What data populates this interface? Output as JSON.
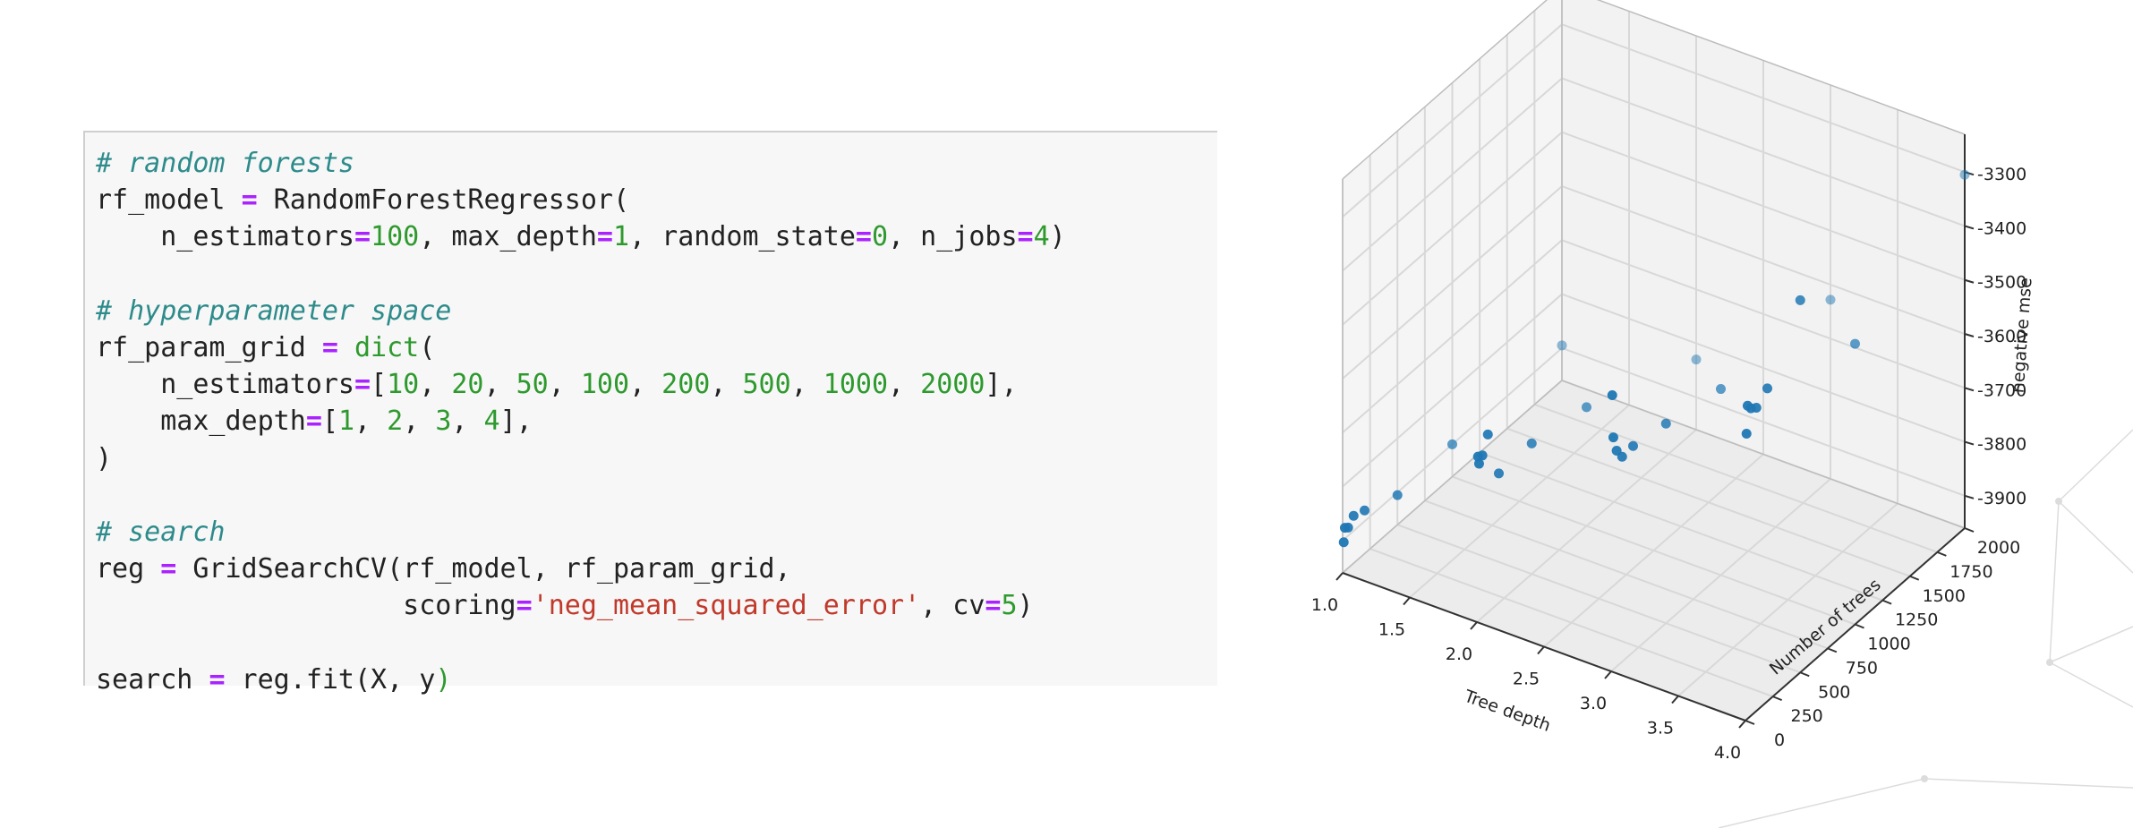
{
  "code_cell": {
    "lines": [
      [
        {
          "t": "# random forests",
          "c": "cm"
        }
      ],
      [
        {
          "t": "rf_model "
        },
        {
          "t": "=",
          "c": "op"
        },
        {
          "t": " RandomForestRegressor("
        }
      ],
      [
        {
          "t": "    n_estimators"
        },
        {
          "t": "=",
          "c": "op"
        },
        {
          "t": "100",
          "c": "nu"
        },
        {
          "t": ", max_depth"
        },
        {
          "t": "=",
          "c": "op"
        },
        {
          "t": "1",
          "c": "nu"
        },
        {
          "t": ", random_state"
        },
        {
          "t": "=",
          "c": "op"
        },
        {
          "t": "0",
          "c": "nu"
        },
        {
          "t": ", n_jobs"
        },
        {
          "t": "=",
          "c": "op"
        },
        {
          "t": "4",
          "c": "nu"
        },
        {
          "t": ")"
        }
      ],
      [
        {
          "t": ""
        }
      ],
      [
        {
          "t": "# hyperparameter space",
          "c": "cm"
        }
      ],
      [
        {
          "t": "rf_param_grid "
        },
        {
          "t": "=",
          "c": "op"
        },
        {
          "t": " "
        },
        {
          "t": "dict",
          "c": "nu"
        },
        {
          "t": "("
        }
      ],
      [
        {
          "t": "    n_estimators"
        },
        {
          "t": "=",
          "c": "op"
        },
        {
          "t": "["
        },
        {
          "t": "10",
          "c": "nu"
        },
        {
          "t": ", "
        },
        {
          "t": "20",
          "c": "nu"
        },
        {
          "t": ", "
        },
        {
          "t": "50",
          "c": "nu"
        },
        {
          "t": ", "
        },
        {
          "t": "100",
          "c": "nu"
        },
        {
          "t": ", "
        },
        {
          "t": "200",
          "c": "nu"
        },
        {
          "t": ", "
        },
        {
          "t": "500",
          "c": "nu"
        },
        {
          "t": ", "
        },
        {
          "t": "1000",
          "c": "nu"
        },
        {
          "t": ", "
        },
        {
          "t": "2000",
          "c": "nu"
        },
        {
          "t": "],"
        }
      ],
      [
        {
          "t": "    max_depth"
        },
        {
          "t": "=",
          "c": "op"
        },
        {
          "t": "["
        },
        {
          "t": "1",
          "c": "nu"
        },
        {
          "t": ", "
        },
        {
          "t": "2",
          "c": "nu"
        },
        {
          "t": ", "
        },
        {
          "t": "3",
          "c": "nu"
        },
        {
          "t": ", "
        },
        {
          "t": "4",
          "c": "nu"
        },
        {
          "t": "],"
        }
      ],
      [
        {
          "t": ")"
        }
      ],
      [
        {
          "t": ""
        }
      ],
      [
        {
          "t": "# search",
          "c": "cm"
        }
      ],
      [
        {
          "t": "reg "
        },
        {
          "t": "=",
          "c": "op"
        },
        {
          "t": " GridSearchCV(rf_model, rf_param_grid,"
        }
      ],
      [
        {
          "t": "                   scoring"
        },
        {
          "t": "=",
          "c": "op"
        },
        {
          "t": "'neg_mean_squared_error'",
          "c": "st"
        },
        {
          "t": ", cv"
        },
        {
          "t": "=",
          "c": "op"
        },
        {
          "t": "5",
          "c": "nu"
        },
        {
          "t": ")"
        }
      ],
      [
        {
          "t": ""
        }
      ],
      [
        {
          "t": "search "
        },
        {
          "t": "=",
          "c": "op"
        },
        {
          "t": " reg"
        },
        {
          "t": "."
        },
        {
          "t": "fit(X, y"
        },
        {
          "t": ")",
          "c": "pa"
        }
      ]
    ]
  },
  "chart_data": {
    "type": "scatter",
    "dimensions": 3,
    "xlabel": "Tree depth",
    "ylabel": "Number of trees",
    "zlabel": "negative mse",
    "x_ticks": [
      "1.0",
      "1.5",
      "2.0",
      "2.5",
      "3.0",
      "3.5",
      "4.0"
    ],
    "y_ticks": [
      "0",
      "250",
      "500",
      "750",
      "1000",
      "1250",
      "1500",
      "1750",
      "2000"
    ],
    "z_ticks": [
      "-3900",
      "-3800",
      "-3700",
      "-3600",
      "-3500",
      "-3400",
      "-3300"
    ],
    "xlim": [
      1,
      4
    ],
    "ylim": [
      0,
      2000
    ],
    "zlim": [
      -3960,
      -3230
    ],
    "grid": true,
    "point_color": "#1f77b4",
    "points": [
      {
        "x": 1,
        "y": 10,
        "z": -3905
      },
      {
        "x": 1,
        "y": 20,
        "z": -3880
      },
      {
        "x": 1,
        "y": 50,
        "z": -3885
      },
      {
        "x": 1,
        "y": 100,
        "z": -3872
      },
      {
        "x": 1,
        "y": 200,
        "z": -3880
      },
      {
        "x": 1,
        "y": 500,
        "z": -3905
      },
      {
        "x": 1,
        "y": 1000,
        "z": -3900
      },
      {
        "x": 1,
        "y": 2000,
        "z": -3895
      },
      {
        "x": 2,
        "y": 10,
        "z": -3655
      },
      {
        "x": 2,
        "y": 20,
        "z": -3670
      },
      {
        "x": 2,
        "y": 50,
        "z": -3660
      },
      {
        "x": 2,
        "y": 100,
        "z": -3630
      },
      {
        "x": 2,
        "y": 200,
        "z": -3720
      },
      {
        "x": 2,
        "y": 500,
        "z": -3718
      },
      {
        "x": 2,
        "y": 1000,
        "z": -3740
      },
      {
        "x": 2,
        "y": 2000,
        "z": -3830
      },
      {
        "x": 3,
        "y": 10,
        "z": -3450
      },
      {
        "x": 3,
        "y": 20,
        "z": -3530
      },
      {
        "x": 3,
        "y": 50,
        "z": -3560
      },
      {
        "x": 3,
        "y": 100,
        "z": -3580
      },
      {
        "x": 3,
        "y": 200,
        "z": -3578
      },
      {
        "x": 3,
        "y": 500,
        "z": -3590
      },
      {
        "x": 3,
        "y": 1000,
        "z": -3615
      },
      {
        "x": 3,
        "y": 2000,
        "z": -3628
      },
      {
        "x": 4,
        "y": 10,
        "z": -3430
      },
      {
        "x": 4,
        "y": 20,
        "z": -3380
      },
      {
        "x": 4,
        "y": 50,
        "z": -3390
      },
      {
        "x": 4,
        "y": 100,
        "z": -3398
      },
      {
        "x": 4,
        "y": 200,
        "z": -3380
      },
      {
        "x": 4,
        "y": 500,
        "z": -3270
      },
      {
        "x": 4,
        "y": 1000,
        "z": -3440
      },
      {
        "x": 4,
        "y": 2000,
        "z": -3305
      }
    ]
  }
}
